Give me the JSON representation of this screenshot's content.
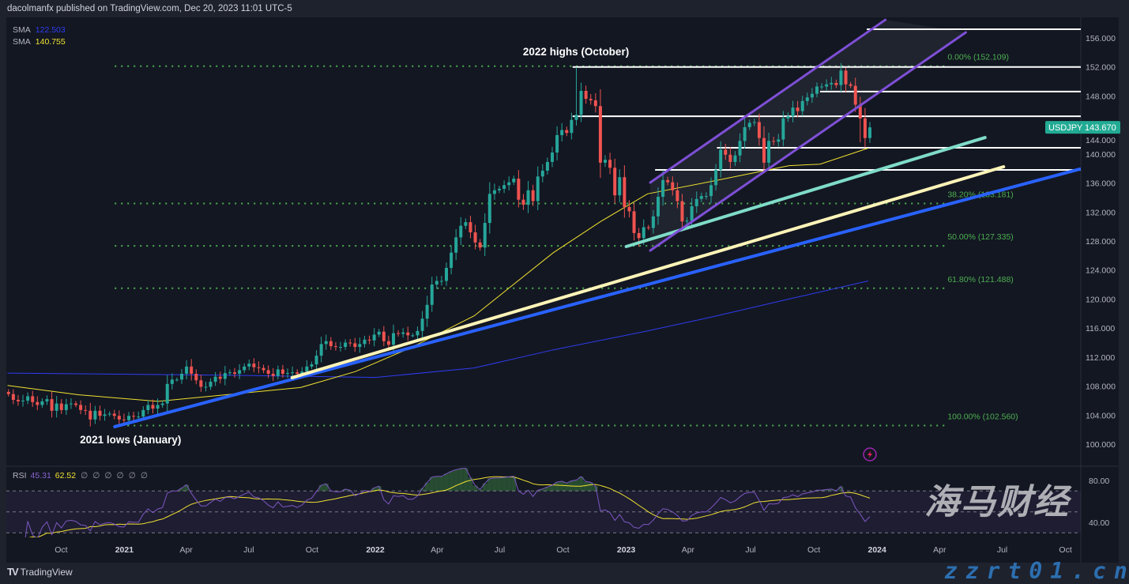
{
  "header": {
    "text": "dacolmanfx published on TradingView.com, Dec 20, 2023 11:01 UTC-5"
  },
  "legend": {
    "sma1_label": "SMA",
    "sma1_value": "122.503",
    "sma2_label": "SMA",
    "sma2_value": "140.755"
  },
  "rsi_legend": {
    "label": "RSI",
    "value1": "45.31",
    "value2": "62.52",
    "nulls": [
      "∅",
      "∅",
      "∅",
      "∅",
      "∅",
      "∅"
    ]
  },
  "footer": {
    "logo": "TV",
    "brand": "TradingView"
  },
  "watermark": {
    "line1": "海马财经",
    "line2": "zzrt01.cn"
  },
  "colors": {
    "up": "#26a69a",
    "down": "#ef5350",
    "sma_long": "#2f3cf0",
    "sma_short": "#f0e130",
    "rsi": "#7e57c2",
    "fib": "#4caf50",
    "last_price": "#22ab94"
  },
  "chart_data": [
    {
      "type": "candlestick",
      "symbol": "USDJPY",
      "interval": "1W",
      "first_week": "2020-07-13",
      "closes": [
        106.9,
        106.1,
        105.9,
        106.0,
        106.6,
        105.8,
        105.4,
        105.9,
        106.2,
        104.6,
        105.6,
        104.7,
        105.5,
        105.6,
        105.4,
        104.7,
        104.6,
        103.4,
        104.6,
        103.9,
        104.1,
        104.2,
        103.9,
        103.4,
        103.3,
        103.9,
        103.8,
        103.8,
        104.7,
        105.4,
        104.9,
        105.4,
        105.6,
        108.3,
        108.9,
        108.9,
        109.7,
        110.7,
        109.7,
        108.8,
        107.9,
        107.9,
        108.6,
        109.3,
        109.0,
        109.8,
        109.9,
        109.7,
        110.2,
        110.7,
        111.1,
        110.6,
        110.5,
        110.2,
        109.7,
        109.4,
        110.3,
        109.7,
        109.8,
        109.9,
        109.7,
        110.0,
        110.7,
        111.0,
        112.2,
        113.8,
        114.2,
        113.5,
        113.4,
        113.4,
        114.0,
        113.9,
        113.4,
        113.8,
        114.4,
        114.3,
        115.1,
        115.5,
        114.2,
        113.7,
        115.3,
        115.2,
        115.4,
        115.0,
        115.0,
        115.6,
        117.3,
        119.2,
        122.0,
        122.5,
        122.5,
        124.3,
        126.4,
        128.5,
        130.1,
        130.6,
        129.2,
        127.8,
        127.1,
        130.5,
        134.5,
        135.0,
        135.2,
        135.7,
        136.1,
        136.6,
        133.7,
        133.0,
        135.0,
        133.5,
        136.9,
        137.7,
        138.9,
        140.2,
        142.6,
        143.3,
        142.9,
        144.7,
        145.4,
        148.7,
        147.6,
        147.4,
        146.6,
        138.8,
        139.2,
        138.1,
        134.3,
        136.8,
        132.7,
        132.1,
        129.1,
        128.4,
        129.9,
        129.8,
        131.4,
        134.1,
        136.4,
        136.1,
        135.0,
        133.5,
        130.7,
        130.8,
        132.8,
        133.8,
        134.2,
        134.2,
        135.7,
        137.8,
        140.6,
        139.9,
        138.9,
        139.8,
        141.8,
        143.7,
        144.3,
        144.4,
        142.2,
        138.8,
        141.8,
        141.7,
        142.0,
        144.9,
        145.2,
        146.4,
        145.9,
        147.3,
        147.8,
        148.3,
        149.3,
        149.3,
        149.6,
        149.8,
        149.5,
        151.5,
        149.6,
        149.4,
        146.8,
        144.9,
        142.2,
        143.67
      ],
      "high_extremes": {
        "2022-10-17": 151.95,
        "2023-11-13": 151.9
      },
      "low_extremes": {
        "2021-01-04": 102.6,
        "2023-01-16": 127.2,
        "2023-12-04": 141.6
      },
      "last_price": {
        "label": "USDJPY",
        "value": "143.670",
        "price": 143.67
      },
      "sma_long": {
        "dates": [
          "2020-07-15",
          "2021-06-01",
          "2022-01-01",
          "2022-05-25",
          "2022-09-17",
          "2023-02-01",
          "2023-05-04",
          "2023-08-26",
          "2023-12-19"
        ],
        "values": [
          109.8,
          109.5,
          109.2,
          110.5,
          113.0,
          115.6,
          117.5,
          120.0,
          122.5
        ]
      },
      "sma_short": {
        "dates": [
          "2020-07-15",
          "2020-10-27",
          "2021-02-19",
          "2021-09-14",
          "2021-12-03",
          "2022-02-22",
          "2022-05-25",
          "2022-09-17",
          "2022-11-25",
          "2023-02-01",
          "2023-05-04",
          "2023-08-26",
          "2023-10-10",
          "2023-12-19"
        ],
        "values": [
          108.1,
          106.8,
          105.9,
          107.8,
          110.0,
          113.3,
          117.7,
          126.4,
          130.7,
          134.5,
          136.2,
          138.4,
          138.6,
          140.8
        ]
      },
      "fib_levels": [
        {
          "label": "0.00% (152.109)",
          "price": 152.109
        },
        {
          "label": "38.20% (133.181)",
          "price": 133.181
        },
        {
          "label": "50.00% (127.335)",
          "price": 127.335
        },
        {
          "label": "61.80% (121.488)",
          "price": 121.488
        },
        {
          "label": "100.00% (102.560)",
          "price": 102.56
        }
      ],
      "fib_range": [
        "2020-12-18",
        "2024-04-09"
      ],
      "horizontal_levels": [
        {
          "price": 157.2,
          "from": "2023-12-17"
        },
        {
          "price": 152.0,
          "from": "2022-10-15"
        },
        {
          "price": 148.6,
          "from": "2023-10-10"
        },
        {
          "price": 145.2,
          "from": "2022-10-15"
        },
        {
          "price": 140.86,
          "from": "2023-05-13"
        },
        {
          "price": 137.8,
          "from": "2023-02-12"
        }
      ],
      "trendlines": [
        {
          "name": "blue-support",
          "color": "#2962ff",
          "from": [
            "2020-12-18",
            102.4
          ],
          "to": [
            "2024-10-22",
            137.92
          ]
        },
        {
          "name": "yellow-support",
          "color": "#fff4b8",
          "from": [
            "2021-09-02",
            109.16
          ],
          "to": [
            "2024-07-03",
            138.24
          ]
        },
        {
          "name": "teal-support",
          "color": "#7fdcc8",
          "from": [
            "2023-01-01",
            127.24
          ],
          "to": [
            "2024-06-06",
            142.27
          ]
        },
        {
          "name": "channel-upper",
          "color": "#7e4fd6",
          "from": [
            "2023-02-05",
            136.06
          ],
          "to": [
            "2024-01-13",
            158.5
          ]
        },
        {
          "name": "channel-lower",
          "color": "#7e4fd6",
          "from": [
            "2023-02-05",
            126.69
          ],
          "to": [
            "2024-05-09",
            156.76
          ]
        }
      ],
      "annotations": [
        {
          "text": "2022 highs (October)",
          "date": "2022-10-20",
          "price": 153.6
        },
        {
          "text": "2021 lows (January)",
          "date": "2021-01-10",
          "price": 100.1
        }
      ],
      "price_ticks": [
        156,
        152,
        148,
        144,
        140,
        136,
        132,
        128,
        124,
        120,
        116,
        112,
        108,
        104,
        100
      ],
      "ylim": [
        98.4,
        157.4
      ],
      "time_ticks": [
        {
          "label": "Oct",
          "date": "2020-10-01"
        },
        {
          "label": "2021",
          "date": "2021-01-01"
        },
        {
          "label": "Apr",
          "date": "2021-04-01"
        },
        {
          "label": "Jul",
          "date": "2021-07-01"
        },
        {
          "label": "Oct",
          "date": "2021-10-01"
        },
        {
          "label": "2022",
          "date": "2022-01-01"
        },
        {
          "label": "Apr",
          "date": "2022-04-01"
        },
        {
          "label": "Jul",
          "date": "2022-07-01"
        },
        {
          "label": "Oct",
          "date": "2022-10-01"
        },
        {
          "label": "2023",
          "date": "2023-01-01"
        },
        {
          "label": "Apr",
          "date": "2023-04-01"
        },
        {
          "label": "Jul",
          "date": "2023-07-01"
        },
        {
          "label": "Oct",
          "date": "2023-10-01"
        },
        {
          "label": "2024",
          "date": "2024-01-01"
        },
        {
          "label": "Apr",
          "date": "2024-04-01"
        },
        {
          "label": "Jul",
          "date": "2024-07-01"
        },
        {
          "label": "Oct",
          "date": "2024-10-01"
        }
      ]
    },
    {
      "type": "line",
      "name": "RSI",
      "source": "closes",
      "period": 14,
      "levels": [
        70,
        50,
        30
      ],
      "y_ticks": [
        {
          "label": "80.00",
          "value": 80
        },
        {
          "label": "40.00",
          "value": 40
        }
      ]
    }
  ]
}
